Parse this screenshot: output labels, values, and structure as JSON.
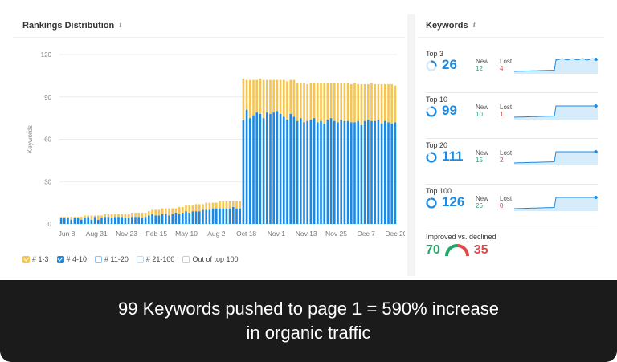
{
  "rankings": {
    "title": "Rankings Distribution",
    "info_icon": "i",
    "legend": [
      {
        "label": "# 1-3",
        "checked": true,
        "color": "#f5c451"
      },
      {
        "label": "# 4-10",
        "checked": true,
        "color": "#1a8ae5"
      },
      {
        "label": "# 11-20",
        "checked": false,
        "color": "#8cc4f2"
      },
      {
        "label": "# 21-100",
        "checked": false,
        "color": "#bfdcf5"
      },
      {
        "label": "Out of top 100",
        "checked": false,
        "color": "#cccccc"
      }
    ]
  },
  "chart_data": {
    "type": "bar",
    "stacked": true,
    "ylabel": "Keywords",
    "ylim": [
      0,
      120
    ],
    "yticks": [
      0,
      30,
      60,
      90,
      120
    ],
    "xticks": [
      "Jun 8",
      "Aug 31",
      "Nov 23",
      "Feb 15",
      "May 10",
      "Aug 2",
      "Oct 18",
      "Nov 1",
      "Nov 13",
      "Nov 25",
      "Dec 7",
      "Dec 20"
    ],
    "grid": true,
    "series": [
      {
        "name": "# 4-10",
        "color": "#1a8ae5",
        "values": [
          4,
          4,
          4,
          3,
          4,
          4,
          3,
          4,
          5,
          3,
          5,
          3,
          4,
          5,
          5,
          4,
          5,
          5,
          5,
          4,
          4,
          5,
          5,
          5,
          4,
          5,
          6,
          7,
          6,
          6,
          7,
          7,
          6,
          7,
          8,
          7,
          8,
          9,
          8,
          9,
          9,
          9,
          10,
          10,
          10,
          11,
          11,
          11,
          11,
          11,
          11,
          12,
          11,
          11,
          74,
          81,
          75,
          77,
          79,
          78,
          75,
          79,
          78,
          79,
          80,
          78,
          76,
          74,
          78,
          76,
          73,
          75,
          72,
          73,
          74,
          75,
          72,
          73,
          71,
          74,
          75,
          73,
          72,
          74,
          73,
          73,
          72,
          72,
          73,
          70,
          73,
          74,
          73,
          73,
          74,
          71,
          73,
          72,
          71,
          72
        ]
      },
      {
        "name": "# 1-3",
        "color": "#f5c451",
        "values": [
          1,
          1,
          1,
          2,
          1,
          1,
          2,
          2,
          1,
          3,
          1,
          3,
          2,
          2,
          2,
          3,
          2,
          2,
          2,
          3,
          3,
          3,
          3,
          3,
          4,
          3,
          3,
          3,
          4,
          4,
          4,
          4,
          5,
          4,
          3,
          5,
          4,
          4,
          5,
          4,
          5,
          5,
          4,
          5,
          5,
          4,
          4,
          5,
          5,
          5,
          5,
          4,
          5,
          5,
          29,
          21,
          27,
          25,
          23,
          25,
          27,
          23,
          24,
          23,
          22,
          24,
          26,
          27,
          24,
          26,
          27,
          25,
          28,
          26,
          26,
          25,
          28,
          27,
          29,
          26,
          25,
          27,
          28,
          26,
          27,
          27,
          27,
          28,
          26,
          29,
          26,
          25,
          27,
          26,
          25,
          28,
          26,
          27,
          28,
          26
        ]
      }
    ]
  },
  "keywords": {
    "title": "Keywords",
    "info_icon": "i",
    "new_label": "New",
    "lost_label": "Lost",
    "blocks": [
      {
        "label": "Top 3",
        "value": "26",
        "new": "12",
        "lost": "4",
        "ring_fraction": 0.26
      },
      {
        "label": "Top 10",
        "value": "99",
        "new": "10",
        "lost": "1",
        "ring_fraction": 0.75
      },
      {
        "label": "Top 20",
        "value": "111",
        "new": "15",
        "lost": "2",
        "ring_fraction": 0.85
      },
      {
        "label": "Top 100",
        "value": "126",
        "new": "26",
        "lost": "0",
        "ring_fraction": 0.95
      }
    ],
    "improved_label": "Improved vs. declined",
    "improved": "70",
    "declined": "35",
    "improved_color": "#20a86b",
    "declined_color": "#e14a4a"
  },
  "footer": {
    "line1": "99 Keywords pushed to page 1 = 590% increase",
    "line2": "in organic traffic"
  }
}
